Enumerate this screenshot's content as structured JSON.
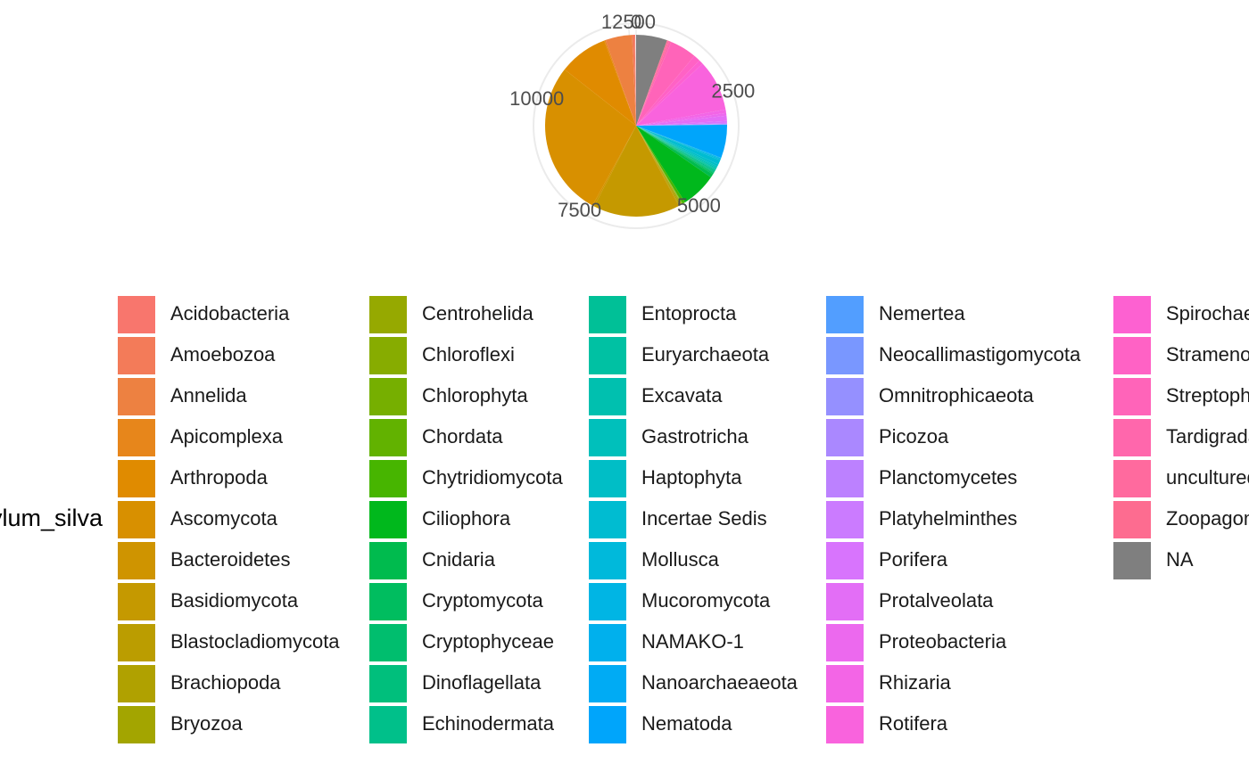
{
  "chart_data": {
    "type": "pie",
    "legend_title": "Phylum_silva",
    "categories": [
      "Acidobacteria",
      "Amoebozoa",
      "Annelida",
      "Apicomplexa",
      "Arthropoda",
      "Ascomycota",
      "Bacteroidetes",
      "Basidiomycota",
      "Blastocladiomycota",
      "Brachiopoda",
      "Bryozoa",
      "Centrohelida",
      "Chloroflexi",
      "Chlorophyta",
      "Chordata",
      "Chytridiomycota",
      "Ciliophora",
      "Cnidaria",
      "Cryptomycota",
      "Cryptophyceae",
      "Dinoflagellata",
      "Echinodermata",
      "Entoprocta",
      "Euryarchaeota",
      "Excavata",
      "Gastrotricha",
      "Haptophyta",
      "Incertae Sedis",
      "Mollusca",
      "Mucoromycota",
      "NAMAKO-1",
      "Nanoarchaeaeota",
      "Nematoda",
      "Nemertea",
      "Neocallimastigomycota",
      "Omnitrophicaeota",
      "Picozoa",
      "Planctomycetes",
      "Platyhelminthes",
      "Porifera",
      "Protalveolata",
      "Proteobacteria",
      "Rhizaria",
      "Rotifera",
      "Spirochaetes",
      "Stramenopiles",
      "Streptophyta",
      "Tardigrada",
      "uncultured",
      "Zoopagomycota",
      "NA"
    ],
    "values": [
      20,
      50,
      600,
      30,
      1100,
      3500,
      40,
      1950,
      20,
      30,
      20,
      10,
      5,
      5,
      10,
      60,
      800,
      80,
      30,
      20,
      20,
      30,
      20,
      20,
      30,
      30,
      50,
      100,
      30,
      20,
      10,
      0,
      750,
      0,
      5,
      0,
      5,
      10,
      20,
      40,
      120,
      60,
      80,
      1150,
      100,
      150,
      600,
      50,
      30,
      20,
      700
    ],
    "colors": [
      "#F8766D",
      "#F37B59",
      "#ED8141",
      "#E7861B",
      "#E08B00",
      "#D89000",
      "#CF9400",
      "#C59900",
      "#BB9D00",
      "#B0A100",
      "#A3A500",
      "#96A900",
      "#87AC00",
      "#76AF00",
      "#62B200",
      "#47B500",
      "#00B81C",
      "#00BB4E",
      "#00BD5F",
      "#00BE6E",
      "#00BF7C",
      "#00C08A",
      "#00C097",
      "#00C1A3",
      "#00C0AF",
      "#00C0BB",
      "#00BEC6",
      "#00BCD1",
      "#00B9DB",
      "#00B5E4",
      "#00B0ED",
      "#00ABF4",
      "#00A5FB",
      "#529EFF",
      "#7997FF",
      "#9590FF",
      "#AA88FF",
      "#BC81FF",
      "#CB7BFF",
      "#D874FD",
      "#E36EF6",
      "#EC69EE",
      "#F365E6",
      "#F963DD",
      "#FD61D1",
      "#FF62C5",
      "#FF64B9",
      "#FF67AC",
      "#FF6A9E",
      "#FD6C90",
      "#7F7F7F"
    ],
    "ylim": [
      0,
      12650
    ],
    "yticks": [
      0,
      2500,
      5000,
      7500,
      10000,
      12500
    ],
    "grid": true
  }
}
